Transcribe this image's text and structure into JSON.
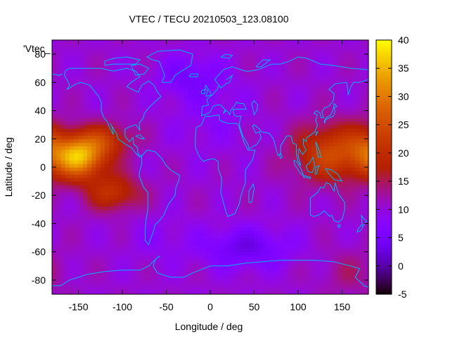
{
  "chart_data": {
    "type": "heatmap",
    "title": "VTEC / TECU 20210503_123.08100",
    "xlabel": "Longitude / deg",
    "ylabel": "Latitude / deg",
    "legend_entry": "'Vtec_",
    "xlim": [
      -180,
      180
    ],
    "ylim": [
      -90,
      90
    ],
    "xticks": [
      -150,
      -100,
      -50,
      0,
      50,
      100,
      150
    ],
    "yticks": [
      -80,
      -60,
      -40,
      -20,
      0,
      20,
      40,
      60,
      80
    ],
    "colorbar": {
      "range": [
        -5,
        40
      ],
      "ticks": [
        -5,
        0,
        5,
        10,
        15,
        20,
        25,
        30,
        35,
        40
      ]
    },
    "coastline_color": "#00b4ff",
    "grid_resolution_deg": [
      5,
      2.5
    ],
    "approx_features": [
      {
        "lon": -150,
        "lat": 8,
        "vtec": 36
      },
      {
        "lon": 135,
        "lat": 10,
        "vtec": 25
      },
      {
        "lon": 40,
        "lat": -55,
        "vtec": 2
      },
      {
        "lon": -20,
        "lat": 62,
        "vtec": 5
      },
      {
        "lon": 0,
        "lat": 0,
        "vtec": 11
      }
    ]
  }
}
